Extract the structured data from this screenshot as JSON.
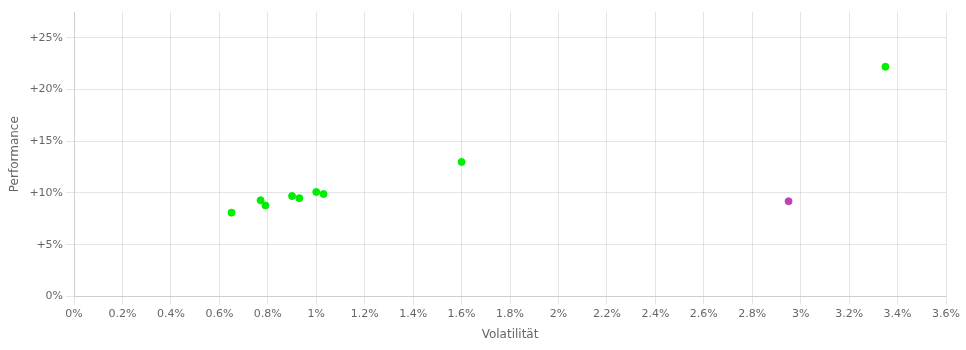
{
  "chart_data": {
    "type": "scatter",
    "x_label": "Volatilität",
    "y_label": "Performance",
    "xlim": [
      0.0,
      0.036
    ],
    "ylim": [
      0.0,
      0.275
    ],
    "xticks": [
      {
        "value": 0.0,
        "label": "0%"
      },
      {
        "value": 0.002,
        "label": "0.2%"
      },
      {
        "value": 0.004,
        "label": "0.4%"
      },
      {
        "value": 0.006,
        "label": "0.6%"
      },
      {
        "value": 0.008,
        "label": "0.8%"
      },
      {
        "value": 0.01,
        "label": "1%"
      },
      {
        "value": 0.012,
        "label": "1.2%"
      },
      {
        "value": 0.014,
        "label": "1.4%"
      },
      {
        "value": 0.016,
        "label": "1.6%"
      },
      {
        "value": 0.018,
        "label": "1.8%"
      },
      {
        "value": 0.02,
        "label": "2%"
      },
      {
        "value": 0.022,
        "label": "2.2%"
      },
      {
        "value": 0.024,
        "label": "2.4%"
      },
      {
        "value": 0.026,
        "label": "2.6%"
      },
      {
        "value": 0.028,
        "label": "2.8%"
      },
      {
        "value": 0.03,
        "label": "3%"
      },
      {
        "value": 0.032,
        "label": "3.2%"
      },
      {
        "value": 0.034,
        "label": "3.4%"
      },
      {
        "value": 0.036,
        "label": "3.6%"
      }
    ],
    "yticks": [
      {
        "value": 0.0,
        "label": "0%"
      },
      {
        "value": 0.05,
        "label": "+5%"
      },
      {
        "value": 0.1,
        "label": "+10%"
      },
      {
        "value": 0.15,
        "label": "+15%"
      },
      {
        "value": 0.2,
        "label": "+20%"
      },
      {
        "value": 0.25,
        "label": "+25%"
      }
    ],
    "grid": true,
    "series": [
      {
        "color": "#00ee00",
        "x": [
          0.0065,
          0.0077,
          0.0079,
          0.009,
          0.0093,
          0.01,
          0.0103,
          0.016,
          0.0335
        ],
        "values": [
          0.081,
          0.093,
          0.088,
          0.097,
          0.095,
          0.101,
          0.099,
          0.13,
          0.222
        ]
      },
      {
        "color": "#bb44bb",
        "x": [
          0.0295
        ],
        "values": [
          0.092
        ]
      }
    ]
  }
}
